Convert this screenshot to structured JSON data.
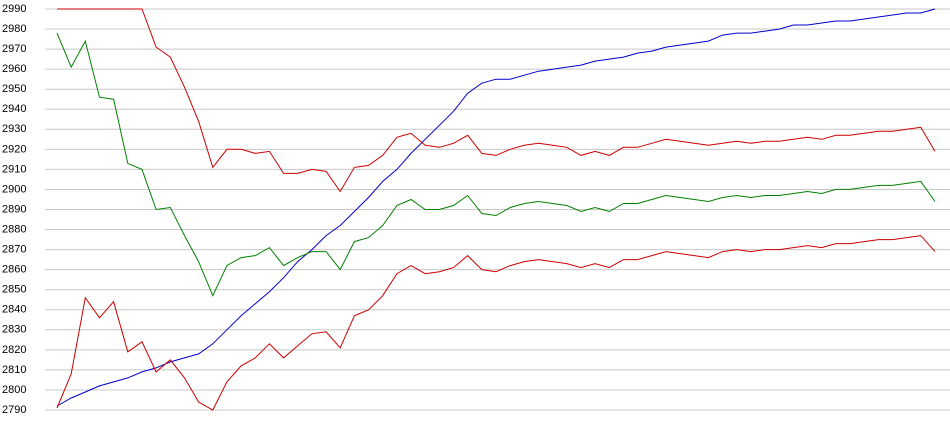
{
  "chart_data": {
    "type": "line",
    "series": [
      {
        "color": "#0000cc",
        "values": [
          2792,
          2796,
          2799,
          2802,
          2804,
          2806,
          2809,
          2811,
          2814,
          2816,
          2818,
          2823,
          2830,
          2837,
          2843,
          2849,
          2856,
          2864,
          2870,
          2877,
          2882,
          2889,
          2896,
          2904,
          2910,
          2918,
          2925,
          2932,
          2939,
          2948,
          2953,
          2955,
          2955,
          2957,
          2959,
          2960,
          2961,
          2962,
          2964,
          2965,
          2966,
          2968,
          2969,
          2971,
          2972,
          2973,
          2974,
          2977,
          2978,
          2978,
          2979,
          2980,
          2982,
          2982,
          2983,
          2984,
          2984,
          2985,
          2986,
          2987,
          2988,
          2988,
          2990
        ]
      },
      {
        "color": "#cc0000",
        "values": [
          2990,
          2990,
          2990,
          2990,
          2990,
          2990,
          2990,
          2971,
          2966,
          2951,
          2934,
          2911,
          2920,
          2920,
          2918,
          2919,
          2908,
          2908,
          2910,
          2909,
          2899,
          2911,
          2912,
          2917,
          2926,
          2928,
          2922,
          2921,
          2923,
          2927,
          2918,
          2917,
          2920,
          2922,
          2923,
          2922,
          2921,
          2917,
          2919,
          2917,
          2921,
          2921,
          2923,
          2925,
          2924,
          2923,
          2922,
          2923,
          2924,
          2923,
          2924,
          2924,
          2925,
          2926,
          2925,
          2927,
          2927,
          2928,
          2929,
          2929,
          2930,
          2931,
          2919
        ]
      },
      {
        "color": "#008000",
        "values": [
          2978,
          2961,
          2974,
          2946,
          2945,
          2913,
          2910,
          2890,
          2891,
          2877,
          2864,
          2847,
          2862,
          2866,
          2867,
          2871,
          2862,
          2866,
          2869,
          2869,
          2860,
          2874,
          2876,
          2882,
          2892,
          2895,
          2890,
          2890,
          2892,
          2897,
          2888,
          2887,
          2891,
          2893,
          2894,
          2893,
          2892,
          2889,
          2891,
          2889,
          2893,
          2893,
          2895,
          2897,
          2896,
          2895,
          2894,
          2896,
          2897,
          2896,
          2897,
          2897,
          2898,
          2899,
          2898,
          2900,
          2900,
          2901,
          2902,
          2902,
          2903,
          2904,
          2894
        ]
      },
      {
        "color": "#cc0000",
        "values": [
          2791,
          2808,
          2846,
          2836,
          2844,
          2819,
          2824,
          2809,
          2815,
          2806,
          2794,
          2790,
          2804,
          2812,
          2816,
          2823,
          2816,
          2822,
          2828,
          2829,
          2821,
          2837,
          2840,
          2847,
          2858,
          2862,
          2858,
          2859,
          2861,
          2867,
          2860,
          2859,
          2862,
          2864,
          2865,
          2864,
          2863,
          2861,
          2863,
          2861,
          2865,
          2865,
          2867,
          2869,
          2868,
          2867,
          2866,
          2869,
          2870,
          2869,
          2870,
          2870,
          2871,
          2872,
          2871,
          2873,
          2873,
          2874,
          2875,
          2875,
          2876,
          2877,
          2869
        ]
      }
    ],
    "ylim": [
      2790,
      2990
    ],
    "yticks": [
      2790,
      2800,
      2810,
      2820,
      2830,
      2840,
      2850,
      2860,
      2870,
      2880,
      2890,
      2900,
      2910,
      2920,
      2930,
      2940,
      2950,
      2960,
      2970,
      2980,
      2990
    ],
    "grid": true
  }
}
